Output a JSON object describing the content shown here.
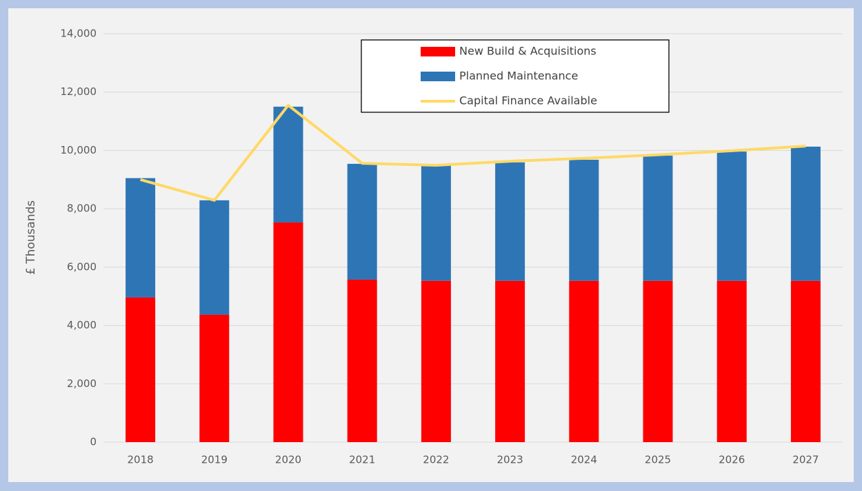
{
  "chart_data": {
    "type": "bar",
    "stacked": true,
    "y_label": "£ Thousands",
    "categories": [
      "2018",
      "2019",
      "2020",
      "2021",
      "2022",
      "2023",
      "2024",
      "2025",
      "2026",
      "2027"
    ],
    "series": [
      {
        "name": "New Build & Acquisitions",
        "type": "bar",
        "color": "#ff0000",
        "values": [
          4960,
          4370,
          7530,
          5570,
          5530,
          5530,
          5530,
          5530,
          5530,
          5530
        ]
      },
      {
        "name": "Planned Maintenance",
        "type": "bar",
        "color": "#2e75b6",
        "values": [
          4090,
          3920,
          3970,
          3970,
          3960,
          4060,
          4150,
          4290,
          4430,
          4600
        ]
      },
      {
        "name": "Capital Finance Available",
        "type": "line",
        "color": "#ffd966",
        "values": [
          9000,
          8290,
          11550,
          9560,
          9490,
          9630,
          9730,
          9850,
          9990,
          10150
        ]
      }
    ],
    "ylim": [
      0,
      14000
    ],
    "yticks": [
      0,
      {
        "value": 2000,
        "label": "2,000"
      },
      {
        "value": 4000,
        "label": "4,000"
      },
      {
        "value": 6000,
        "label": "6,000"
      },
      {
        "value": 8000,
        "label": "8,000"
      },
      {
        "value": 10000,
        "label": "10,000"
      },
      {
        "value": 12000,
        "label": "12,000"
      },
      {
        "value": 14000,
        "label": "14,000"
      }
    ],
    "grid": true,
    "legend": "top"
  }
}
